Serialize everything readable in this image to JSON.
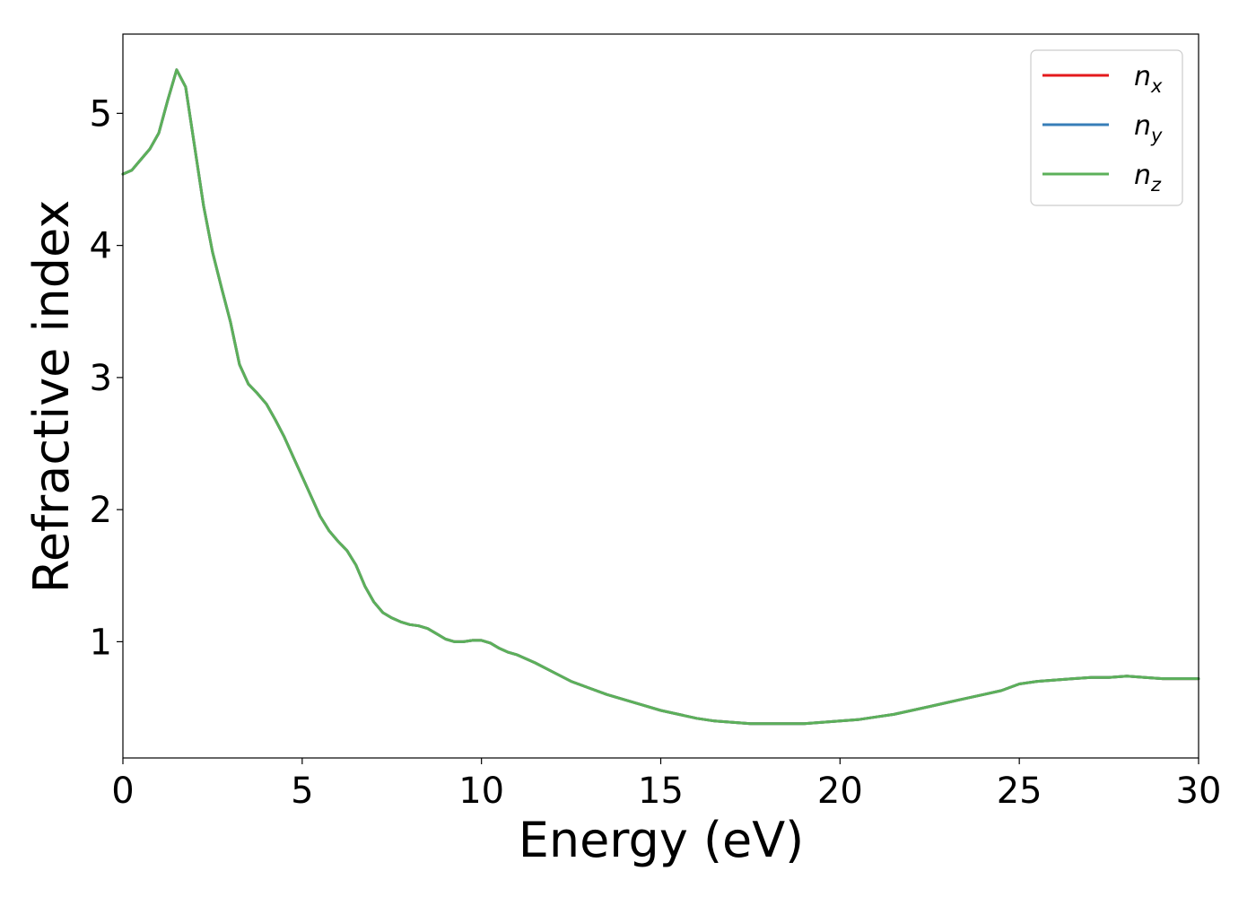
{
  "chart_data": {
    "type": "line",
    "xlabel": "Energy (eV)",
    "ylabel": "Refractive index",
    "xlim": [
      0,
      30
    ],
    "ylim": [
      0.12,
      5.6
    ],
    "x_ticks": [
      "0",
      "5",
      "10",
      "15",
      "20",
      "25",
      "30"
    ],
    "y_ticks": [
      "1",
      "2",
      "3",
      "4",
      "5"
    ],
    "grid": false,
    "legend_position": "top-right",
    "series": [
      {
        "name": "n_x",
        "legend_base": "n",
        "legend_sub": "x",
        "color": "#e41a1c",
        "x": [
          0,
          0.25,
          0.5,
          0.75,
          1.0,
          1.25,
          1.5,
          1.75,
          2.0,
          2.25,
          2.5,
          2.75,
          3.0,
          3.25,
          3.5,
          3.75,
          4.0,
          4.25,
          4.5,
          4.75,
          5.0,
          5.25,
          5.5,
          5.75,
          6.0,
          6.25,
          6.5,
          6.75,
          7.0,
          7.25,
          7.5,
          7.75,
          8.0,
          8.25,
          8.5,
          8.75,
          9.0,
          9.25,
          9.5,
          9.75,
          10.0,
          10.25,
          10.5,
          10.75,
          11.0,
          11.5,
          12.0,
          12.5,
          13.0,
          13.5,
          14.0,
          14.5,
          15.0,
          15.5,
          16.0,
          16.5,
          17.0,
          17.5,
          18.0,
          18.5,
          19.0,
          19.5,
          20.0,
          20.5,
          21.0,
          21.5,
          22.0,
          22.5,
          23.0,
          23.5,
          24.0,
          24.5,
          25.0,
          25.5,
          26.0,
          26.5,
          27.0,
          27.5,
          28.0,
          28.5,
          29.0,
          29.5,
          30.0
        ],
        "y": [
          4.54,
          4.57,
          4.65,
          4.73,
          4.85,
          5.1,
          5.33,
          5.2,
          4.75,
          4.3,
          3.95,
          3.68,
          3.42,
          3.1,
          2.95,
          2.88,
          2.8,
          2.68,
          2.55,
          2.4,
          2.25,
          2.1,
          1.95,
          1.84,
          1.76,
          1.69,
          1.58,
          1.42,
          1.3,
          1.22,
          1.18,
          1.15,
          1.13,
          1.12,
          1.1,
          1.06,
          1.02,
          1.0,
          1.0,
          1.01,
          1.01,
          0.99,
          0.95,
          0.92,
          0.9,
          0.84,
          0.77,
          0.7,
          0.65,
          0.6,
          0.56,
          0.52,
          0.48,
          0.45,
          0.42,
          0.4,
          0.39,
          0.38,
          0.38,
          0.38,
          0.38,
          0.39,
          0.4,
          0.41,
          0.43,
          0.45,
          0.48,
          0.51,
          0.54,
          0.57,
          0.6,
          0.63,
          0.68,
          0.7,
          0.71,
          0.72,
          0.73,
          0.73,
          0.74,
          0.73,
          0.72,
          0.72,
          0.72
        ]
      },
      {
        "name": "n_y",
        "legend_base": "n",
        "legend_sub": "y",
        "color": "#377eb8",
        "x": [
          0,
          0.25,
          0.5,
          0.75,
          1.0,
          1.25,
          1.5,
          1.75,
          2.0,
          2.25,
          2.5,
          2.75,
          3.0,
          3.25,
          3.5,
          3.75,
          4.0,
          4.25,
          4.5,
          4.75,
          5.0,
          5.25,
          5.5,
          5.75,
          6.0,
          6.25,
          6.5,
          6.75,
          7.0,
          7.25,
          7.5,
          7.75,
          8.0,
          8.25,
          8.5,
          8.75,
          9.0,
          9.25,
          9.5,
          9.75,
          10.0,
          10.25,
          10.5,
          10.75,
          11.0,
          11.5,
          12.0,
          12.5,
          13.0,
          13.5,
          14.0,
          14.5,
          15.0,
          15.5,
          16.0,
          16.5,
          17.0,
          17.5,
          18.0,
          18.5,
          19.0,
          19.5,
          20.0,
          20.5,
          21.0,
          21.5,
          22.0,
          22.5,
          23.0,
          23.5,
          24.0,
          24.5,
          25.0,
          25.5,
          26.0,
          26.5,
          27.0,
          27.5,
          28.0,
          28.5,
          29.0,
          29.5,
          30.0
        ],
        "y": [
          4.54,
          4.57,
          4.65,
          4.73,
          4.85,
          5.1,
          5.33,
          5.2,
          4.75,
          4.3,
          3.95,
          3.68,
          3.42,
          3.1,
          2.95,
          2.88,
          2.8,
          2.68,
          2.55,
          2.4,
          2.25,
          2.1,
          1.95,
          1.84,
          1.76,
          1.69,
          1.58,
          1.42,
          1.3,
          1.22,
          1.18,
          1.15,
          1.13,
          1.12,
          1.1,
          1.06,
          1.02,
          1.0,
          1.0,
          1.01,
          1.01,
          0.99,
          0.95,
          0.92,
          0.9,
          0.84,
          0.77,
          0.7,
          0.65,
          0.6,
          0.56,
          0.52,
          0.48,
          0.45,
          0.42,
          0.4,
          0.39,
          0.38,
          0.38,
          0.38,
          0.38,
          0.39,
          0.4,
          0.41,
          0.43,
          0.45,
          0.48,
          0.51,
          0.54,
          0.57,
          0.6,
          0.63,
          0.68,
          0.7,
          0.71,
          0.72,
          0.73,
          0.73,
          0.74,
          0.73,
          0.72,
          0.72,
          0.72
        ]
      },
      {
        "name": "n_z",
        "legend_base": "n",
        "legend_sub": "z",
        "color": "#5cb05a",
        "x": [
          0,
          0.25,
          0.5,
          0.75,
          1.0,
          1.25,
          1.5,
          1.75,
          2.0,
          2.25,
          2.5,
          2.75,
          3.0,
          3.25,
          3.5,
          3.75,
          4.0,
          4.25,
          4.5,
          4.75,
          5.0,
          5.25,
          5.5,
          5.75,
          6.0,
          6.25,
          6.5,
          6.75,
          7.0,
          7.25,
          7.5,
          7.75,
          8.0,
          8.25,
          8.5,
          8.75,
          9.0,
          9.25,
          9.5,
          9.75,
          10.0,
          10.25,
          10.5,
          10.75,
          11.0,
          11.5,
          12.0,
          12.5,
          13.0,
          13.5,
          14.0,
          14.5,
          15.0,
          15.5,
          16.0,
          16.5,
          17.0,
          17.5,
          18.0,
          18.5,
          19.0,
          19.5,
          20.0,
          20.5,
          21.0,
          21.5,
          22.0,
          22.5,
          23.0,
          23.5,
          24.0,
          24.5,
          25.0,
          25.5,
          26.0,
          26.5,
          27.0,
          27.5,
          28.0,
          28.5,
          29.0,
          29.5,
          30.0
        ],
        "y": [
          4.54,
          4.57,
          4.65,
          4.73,
          4.85,
          5.1,
          5.33,
          5.2,
          4.75,
          4.3,
          3.95,
          3.68,
          3.42,
          3.1,
          2.95,
          2.88,
          2.8,
          2.68,
          2.55,
          2.4,
          2.25,
          2.1,
          1.95,
          1.84,
          1.76,
          1.69,
          1.58,
          1.42,
          1.3,
          1.22,
          1.18,
          1.15,
          1.13,
          1.12,
          1.1,
          1.06,
          1.02,
          1.0,
          1.0,
          1.01,
          1.01,
          0.99,
          0.95,
          0.92,
          0.9,
          0.84,
          0.77,
          0.7,
          0.65,
          0.6,
          0.56,
          0.52,
          0.48,
          0.45,
          0.42,
          0.4,
          0.39,
          0.38,
          0.38,
          0.38,
          0.38,
          0.39,
          0.4,
          0.41,
          0.43,
          0.45,
          0.48,
          0.51,
          0.54,
          0.57,
          0.6,
          0.63,
          0.68,
          0.7,
          0.71,
          0.72,
          0.73,
          0.73,
          0.74,
          0.73,
          0.72,
          0.72,
          0.72
        ]
      }
    ]
  }
}
